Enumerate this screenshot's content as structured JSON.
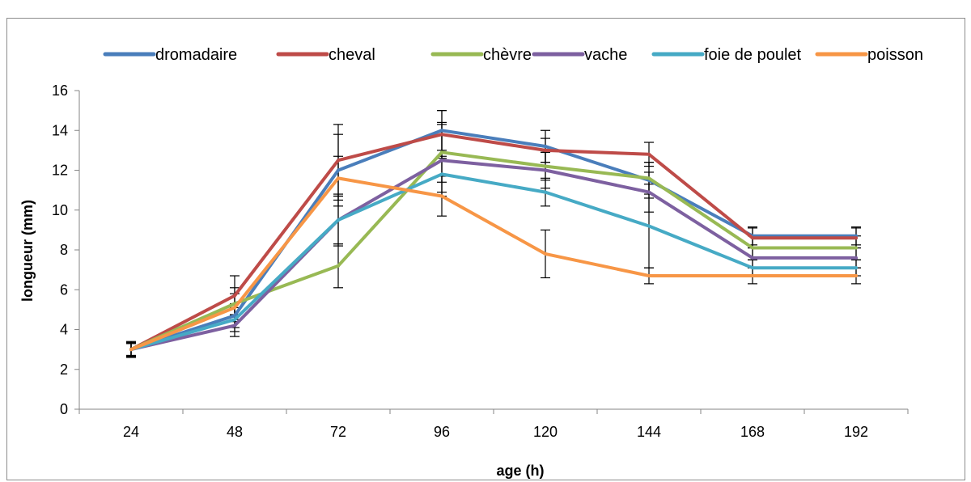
{
  "chart_data": {
    "type": "line",
    "title": "",
    "xlabel": "age (h)",
    "ylabel": "longueur (mm)",
    "categories": [
      "24",
      "48",
      "72",
      "96",
      "120",
      "144",
      "168",
      "192"
    ],
    "ylim": [
      0,
      16
    ],
    "yticks": [
      "0",
      "2",
      "4",
      "6",
      "8",
      "10",
      "12",
      "14",
      "16"
    ],
    "grid": false,
    "legend_position": "top",
    "series": [
      {
        "name": "dromadaire",
        "color": "#4A7EBB",
        "values": [
          3.0,
          4.7,
          12.0,
          14.0,
          13.2,
          11.5,
          8.7,
          8.7
        ],
        "errors": [
          0.4,
          0.6,
          1.8,
          1.0,
          0.8,
          0.9,
          0.45,
          0.45
        ]
      },
      {
        "name": "cheval",
        "color": "#BE4B48",
        "values": [
          3.0,
          5.7,
          12.5,
          13.8,
          13.0,
          12.8,
          8.6,
          8.6
        ],
        "errors": [
          0.35,
          1.0,
          1.8,
          1.2,
          0.6,
          0.6,
          0.5,
          0.5
        ]
      },
      {
        "name": "chèvre",
        "color": "#98B954",
        "values": [
          3.0,
          5.3,
          7.2,
          12.9,
          12.2,
          11.6,
          8.1,
          8.1
        ],
        "errors": [
          0.3,
          0.8,
          1.1,
          1.5,
          0.7,
          0.8,
          0.6,
          0.6
        ]
      },
      {
        "name": "vache",
        "color": "#7D60A0",
        "values": [
          3.0,
          4.2,
          9.5,
          12.5,
          12.0,
          10.9,
          7.6,
          7.6
        ],
        "errors": [
          0.35,
          0.55,
          1.2,
          1.8,
          0.9,
          1.0,
          0.5,
          0.5
        ]
      },
      {
        "name": "foie de poulet",
        "color": "#46AAC5",
        "values": [
          3.0,
          4.5,
          9.5,
          11.8,
          10.9,
          9.2,
          7.1,
          7.1
        ],
        "errors": [
          0.35,
          0.6,
          1.3,
          0.9,
          0.7,
          2.1,
          0.4,
          0.4
        ]
      },
      {
        "name": "poisson",
        "color": "#F79646",
        "values": [
          3.0,
          5.1,
          11.6,
          10.7,
          7.8,
          6.7,
          6.7,
          6.7
        ],
        "errors": [
          0.3,
          0.7,
          1.1,
          1.0,
          1.2,
          0.4,
          0.4,
          0.4
        ]
      }
    ]
  }
}
